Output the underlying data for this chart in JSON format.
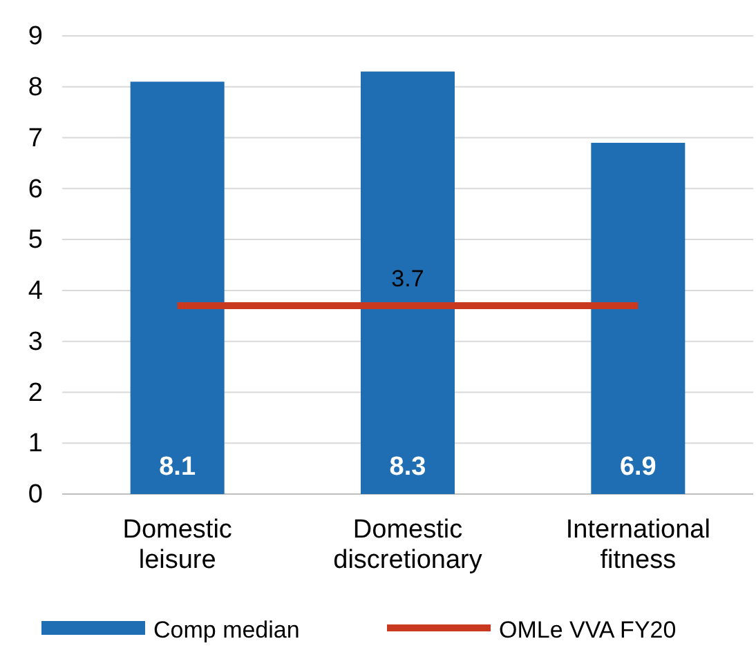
{
  "chart_data": {
    "type": "bar",
    "categories": [
      "Domestic leisure",
      "Domestic discretionary",
      "International fitness"
    ],
    "series": [
      {
        "name": "Comp median",
        "color": "#1f6db3",
        "values": [
          8.1,
          8.3,
          6.9
        ],
        "value_labels": [
          "8.1",
          "8.3",
          "6.9"
        ]
      },
      {
        "name": "OMLe VVA FY20",
        "type": "line",
        "color": "#c9391f",
        "values": [
          3.7,
          3.7,
          3.7
        ],
        "value_labels": [
          null,
          "3.7",
          null
        ]
      }
    ],
    "ylim": [
      0,
      9
    ],
    "yticks": [
      0,
      1,
      2,
      3,
      4,
      5,
      6,
      7,
      8,
      9
    ],
    "grid": "y",
    "legend": "bottom"
  }
}
